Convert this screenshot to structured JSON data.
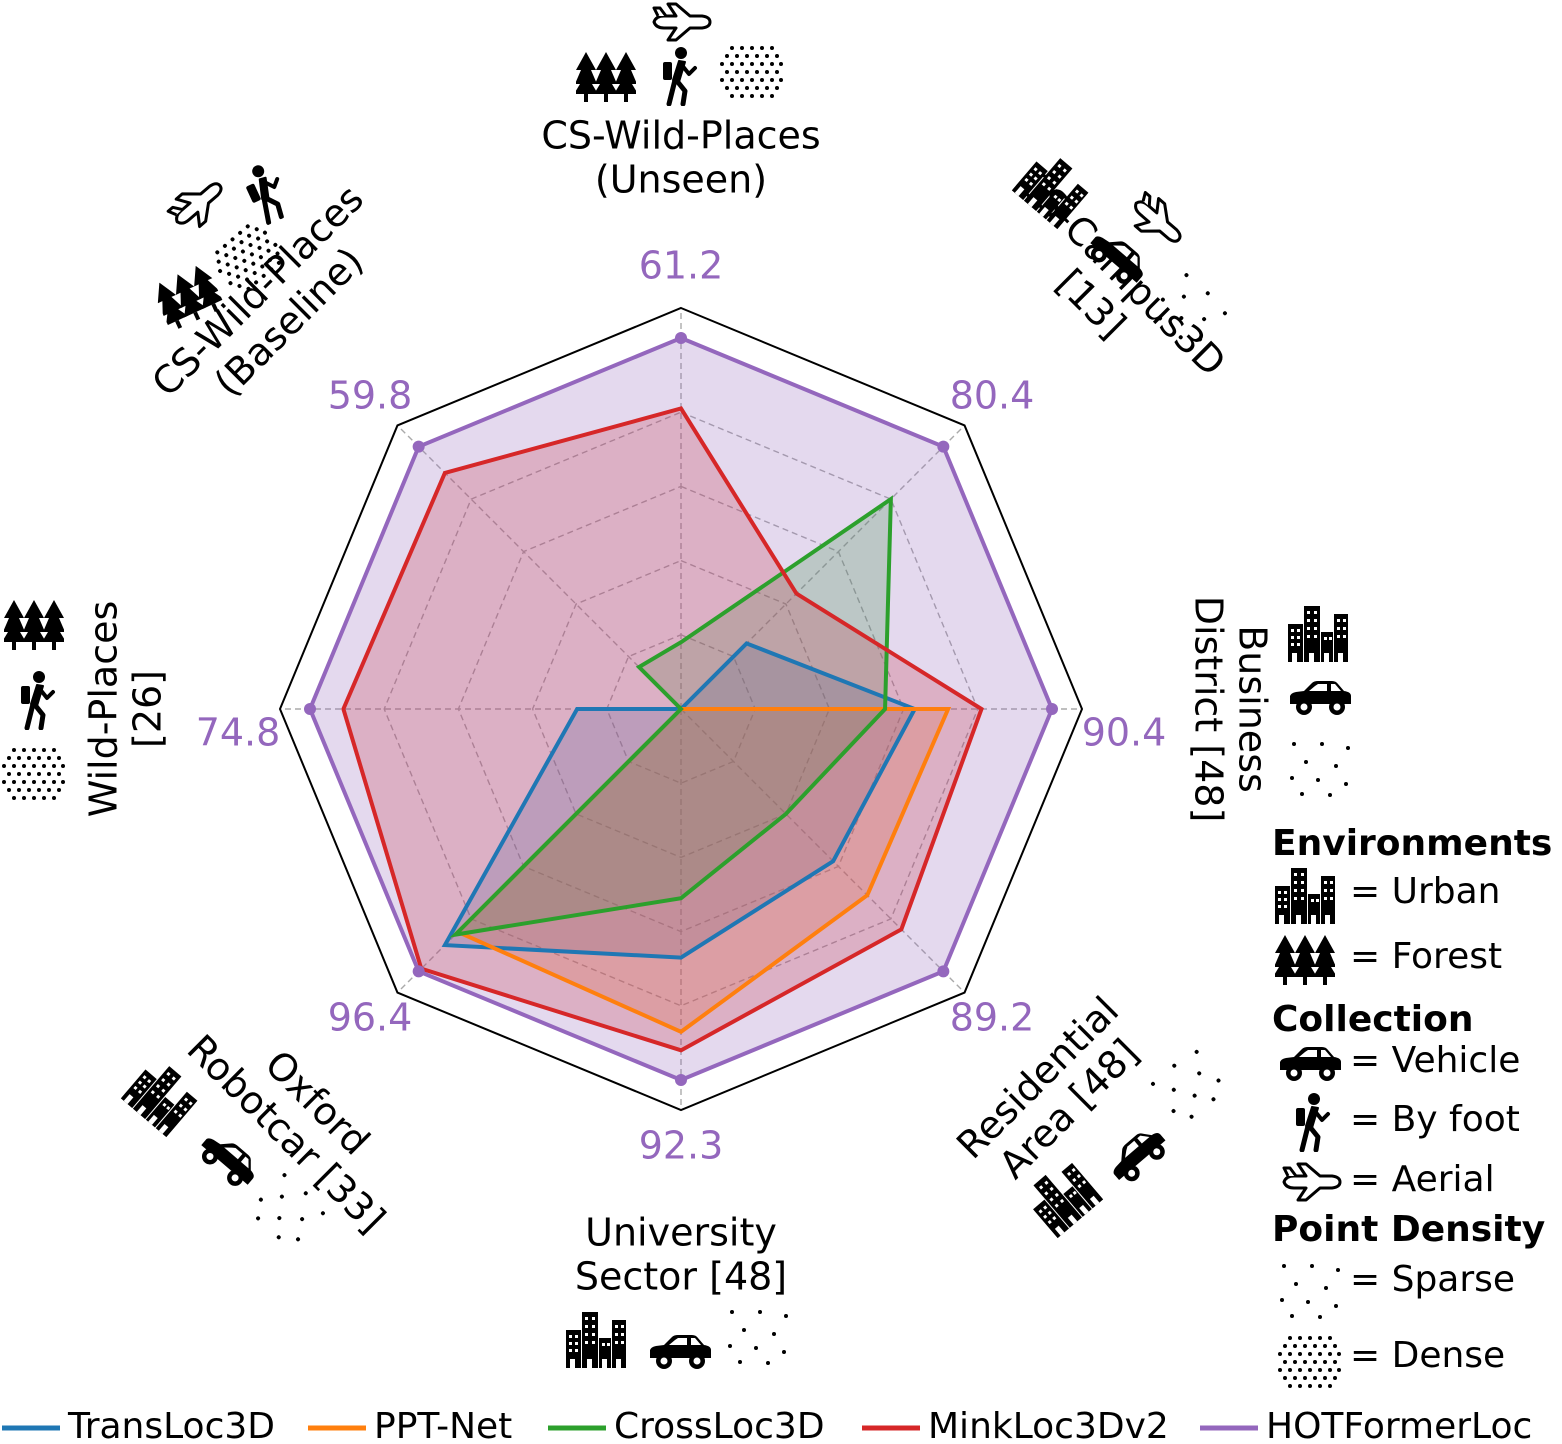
{
  "chart_data": {
    "type": "radar",
    "axes": [
      {
        "lines": [
          "CS-Wild-Places",
          "(Unseen)"
        ],
        "max_label": "61.2",
        "icons": [
          "forest-icon",
          "by-foot-icon",
          "dense-points-icon",
          "aerial-icon"
        ]
      },
      {
        "lines": [
          "CS-Campus3D",
          "[13]"
        ],
        "max_label": "80.4",
        "icons": [
          "urban-icon",
          "aerial-icon",
          "vehicle-icon",
          "sparse-points-icon"
        ]
      },
      {
        "lines": [
          "Business",
          "District [48]"
        ],
        "max_label": "90.4",
        "icons": [
          "urban-icon",
          "vehicle-icon",
          "sparse-points-icon"
        ]
      },
      {
        "lines": [
          "Residential",
          "Area [48]"
        ],
        "max_label": "89.2",
        "icons": [
          "urban-icon",
          "vehicle-icon",
          "sparse-points-icon"
        ]
      },
      {
        "lines": [
          "University",
          "Sector [48]"
        ],
        "max_label": "92.3",
        "icons": [
          "urban-icon",
          "vehicle-icon",
          "sparse-points-icon"
        ]
      },
      {
        "lines": [
          "Oxford",
          "Robotcar [33]"
        ],
        "max_label": "96.4",
        "icons": [
          "urban-icon",
          "vehicle-icon",
          "sparse-points-icon"
        ]
      },
      {
        "lines": [
          "Wild-Places",
          "[26]"
        ],
        "max_label": "74.8",
        "icons": [
          "forest-icon",
          "by-foot-icon",
          "dense-points-icon"
        ]
      },
      {
        "lines": [
          "CS-Wild-Places",
          "(Baseline)"
        ],
        "max_label": "59.8",
        "icons": [
          "aerial-icon",
          "dense-points-icon",
          "by-foot-icon",
          "forest-icon"
        ]
      }
    ],
    "series": [
      {
        "name": "TransLoc3D",
        "color": "#1f77b4",
        "values": [
          0.0,
          0.25,
          0.63,
          0.58,
          0.67,
          0.9,
          0.28,
          0.0
        ]
      },
      {
        "name": "PPT-Net",
        "color": "#ff7f0e",
        "values": [
          0.0,
          0.0,
          0.72,
          0.71,
          0.87,
          0.85,
          0.0,
          0.0
        ]
      },
      {
        "name": "CrossLoc3D",
        "color": "#2ca02c",
        "values": [
          0.18,
          0.8,
          0.55,
          0.4,
          0.51,
          0.86,
          0.0,
          0.16
        ]
      },
      {
        "name": "MinkLoc3Dv2",
        "color": "#d62728",
        "values": [
          0.81,
          0.44,
          0.81,
          0.84,
          0.92,
          0.99,
          0.91,
          0.9
        ]
      },
      {
        "name": "HOTFormerLoc",
        "color": "#9467bd",
        "values": [
          1.0,
          1.0,
          1.0,
          1.0,
          1.0,
          1.0,
          1.0,
          1.0
        ]
      }
    ],
    "ylim": [
      0,
      1
    ],
    "grid": true,
    "legend_position": "bottom"
  },
  "key": {
    "sections": [
      {
        "title": "Environments",
        "items": [
          {
            "icon": "urban-icon",
            "label": "= Urban"
          },
          {
            "icon": "forest-icon",
            "label": "= Forest"
          }
        ]
      },
      {
        "title": "Collection",
        "items": [
          {
            "icon": "vehicle-icon",
            "label": "= Vehicle"
          },
          {
            "icon": "by-foot-icon",
            "label": "= By foot"
          },
          {
            "icon": "aerial-icon",
            "label": "= Aerial"
          }
        ]
      },
      {
        "title": "Point Density",
        "items": [
          {
            "icon": "sparse-points-icon",
            "label": "= Sparse"
          },
          {
            "icon": "dense-points-icon",
            "label": "= Dense"
          }
        ]
      }
    ]
  }
}
